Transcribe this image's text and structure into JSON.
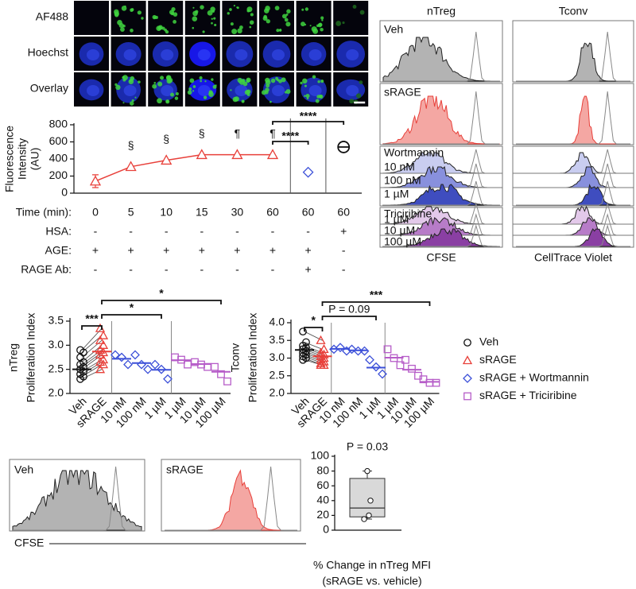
{
  "microscopy": {
    "row_labels": [
      "AF488",
      "Hoechst",
      "Overlay"
    ]
  },
  "chart_data": [
    {
      "type": "line",
      "y_label": [
        "Fluorescence",
        "Intensity",
        "(AU)"
      ],
      "x_label": "Time (min):",
      "categories": [
        "0",
        "5",
        "10",
        "15",
        "30",
        "60",
        "60",
        "60"
      ],
      "ylim": [
        0,
        800
      ],
      "yticks": [
        0,
        200,
        400,
        600,
        800
      ],
      "series": [
        {
          "color": "#e8403a",
          "marker": "triangle",
          "values": [
            140,
            310,
            385,
            450,
            450,
            450,
            null,
            null
          ],
          "errors": [
            75,
            null,
            null,
            null,
            null,
            null,
            null,
            null
          ]
        },
        {
          "color": "#3b4fd8",
          "marker": "diamond",
          "values": [
            null,
            null,
            null,
            null,
            null,
            null,
            245,
            null
          ]
        },
        {
          "color": "#111111",
          "marker": "circle-minus",
          "values": [
            null,
            null,
            null,
            null,
            null,
            null,
            null,
            540
          ]
        }
      ],
      "annotations": [
        {
          "index": 1,
          "text": "§"
        },
        {
          "index": 2,
          "text": "§"
        },
        {
          "index": 3,
          "text": "§"
        },
        {
          "index": 4,
          "text": "¶"
        },
        {
          "index": 5,
          "text": "¶"
        }
      ],
      "brackets": [
        {
          "from": 5,
          "to": 6,
          "text": "****"
        },
        {
          "from": 5,
          "to": 7,
          "text": "****"
        }
      ],
      "table": [
        {
          "label": "HSA:",
          "values": [
            "-",
            "-",
            "-",
            "-",
            "-",
            "-",
            "-",
            "+"
          ]
        },
        {
          "label": "AGE:",
          "values": [
            "+",
            "+",
            "+",
            "+",
            "+",
            "+",
            "+",
            "-"
          ]
        },
        {
          "label": "RAGE Ab:",
          "values": [
            "-",
            "-",
            "-",
            "-",
            "-",
            "-",
            "+",
            "-"
          ]
        }
      ]
    },
    {
      "type": "dot",
      "y_label": [
        "nTreg",
        "Proliferation Index"
      ],
      "categories": [
        "Veh",
        "sRAGE",
        "10 nM",
        "100 nM",
        "1 µM",
        "1 µM",
        "10 µM",
        "100 µM"
      ],
      "ylim": [
        2.0,
        3.5
      ],
      "yticks": [
        {
          "value": 2.0,
          "label": "2.0"
        },
        2.5,
        {
          "value": 3.0,
          "label": "3.0"
        },
        3.5
      ],
      "series": [
        {
          "color": "#111111",
          "marker": "circle",
          "means": [
            2.5,
            null,
            null,
            null,
            null,
            null,
            null,
            null
          ],
          "points": [
            [
              2.3,
              2.35,
              2.4,
              2.45,
              2.5,
              2.55,
              2.6,
              2.65,
              2.75,
              2.85,
              2.9
            ],
            null,
            null,
            null,
            null,
            null,
            null,
            null
          ]
        },
        {
          "color": "#e8403a",
          "marker": "triangle",
          "means": [
            null,
            2.87,
            null,
            null,
            null,
            null,
            null,
            null
          ],
          "points": [
            null,
            [
              2.5,
              2.6,
              2.65,
              2.7,
              2.8,
              2.85,
              2.9,
              3.0,
              3.1,
              3.2,
              3.35
            ],
            null,
            null,
            null,
            null,
            null,
            null
          ]
        },
        {
          "color": "#3b4fd8",
          "marker": "diamond",
          "means": [
            null,
            null,
            2.72,
            2.63,
            2.49,
            null,
            null,
            null
          ],
          "points": [
            null,
            null,
            [
              2.8,
              2.75,
              2.6
            ],
            [
              2.8,
              2.6,
              2.5
            ],
            [
              2.6,
              2.5,
              2.3
            ],
            null,
            null,
            null
          ]
        },
        {
          "color": "#b65cc8",
          "marker": "square",
          "means": [
            null,
            null,
            null,
            null,
            null,
            2.69,
            2.61,
            2.45
          ],
          "points": [
            null,
            null,
            null,
            null,
            null,
            [
              2.75,
              2.7,
              2.6
            ],
            [
              2.65,
              2.6,
              2.55
            ],
            [
              2.55,
              2.4,
              2.25
            ]
          ]
        }
      ],
      "brackets": [
        {
          "from": 0,
          "to": 1,
          "text": "***"
        },
        {
          "from": 1,
          "to": 4,
          "text": "*"
        },
        {
          "from": 1,
          "to": 7,
          "text": "*"
        }
      ]
    },
    {
      "type": "dot",
      "y_label": [
        "Tconv",
        "Proliferation Index"
      ],
      "categories": [
        "Veh",
        "sRAGE",
        "10 nM",
        "100 nM",
        "1 µM",
        "1 µM",
        "10 µM",
        "100 µM"
      ],
      "ylim": [
        2.0,
        4.0
      ],
      "yticks": [
        {
          "value": 2.0,
          "label": "2.0"
        },
        2.5,
        {
          "value": 3.0,
          "label": "3.0"
        },
        3.5,
        {
          "value": 4.0,
          "label": "4.0"
        }
      ],
      "series": [
        {
          "name": "Veh",
          "color": "#111111",
          "marker": "circle",
          "means": [
            3.23,
            null,
            null,
            null,
            null,
            null,
            null,
            null
          ],
          "points": [
            [
              3.75,
              3.45,
              3.35,
              3.3,
              3.25,
              3.2,
              3.15,
              3.1,
              3.05,
              3.0,
              2.95
            ],
            null,
            null,
            null,
            null,
            null,
            null,
            null
          ]
        },
        {
          "name": "sRAGE",
          "color": "#e8403a",
          "marker": "triangle",
          "means": [
            null,
            3.05,
            null,
            null,
            null,
            null,
            null,
            null
          ],
          "points": [
            null,
            [
              3.5,
              3.25,
              3.15,
              3.1,
              3.05,
              3.0,
              2.95,
              2.9,
              2.85,
              2.8,
              2.8
            ],
            null,
            null,
            null,
            null,
            null,
            null
          ]
        },
        {
          "name": "sRAGE + Wortmannin",
          "color": "#3b4fd8",
          "marker": "diamond",
          "means": [
            null,
            null,
            3.26,
            3.22,
            2.73,
            null,
            null,
            null
          ],
          "points": [
            null,
            null,
            [
              3.25,
              3.3,
              3.2
            ],
            [
              3.25,
              3.2,
              3.2
            ],
            [
              2.95,
              2.75,
              2.55
            ],
            null,
            null,
            null
          ]
        },
        {
          "name": "sRAGE + Triciribine",
          "color": "#b65cc8",
          "marker": "square",
          "means": [
            null,
            null,
            null,
            null,
            null,
            3.01,
            2.67,
            2.33
          ],
          "points": [
            null,
            null,
            null,
            null,
            null,
            [
              3.25,
              3.0,
              2.8
            ],
            [
              2.95,
              2.7,
              2.5
            ],
            [
              2.4,
              2.3,
              2.3
            ]
          ]
        }
      ],
      "brackets": [
        {
          "from": 0,
          "to": 1,
          "text": "*"
        },
        {
          "from": 1,
          "to": 4,
          "text": "P = 0.09"
        },
        {
          "from": 1,
          "to": 7,
          "text": "***"
        }
      ]
    },
    {
      "type": "box",
      "title": "P = 0.03",
      "x_label": [
        "% Change in nTreg MFI",
        "(sRAGE vs. vehicle)"
      ],
      "ylim": [
        0,
        100
      ],
      "yticks": [
        0,
        20,
        40,
        60,
        80,
        100
      ],
      "color": "#d9d9d9",
      "box": {
        "min": 15,
        "q1": 18,
        "median": 30,
        "q3": 70,
        "max": 80
      },
      "points": [
        80,
        40,
        20,
        15
      ]
    }
  ],
  "histograms": {
    "columns": [
      "nTreg",
      "Tconv"
    ],
    "x_labels": [
      "CFSE",
      "CellTrace Violet"
    ],
    "rows": [
      {
        "label": "Veh"
      },
      {
        "label": "sRAGE"
      },
      {
        "label": "Wortmannin",
        "sublabels": [
          "10 nM",
          "100 nM",
          "1 µM"
        ]
      },
      {
        "label": "Triciribine",
        "sublabels": [
          "1 µM",
          "10 µM",
          "100 µM"
        ]
      }
    ],
    "bottom": {
      "labels": [
        "Veh",
        "sRAGE"
      ],
      "x_label": "CFSE"
    }
  }
}
